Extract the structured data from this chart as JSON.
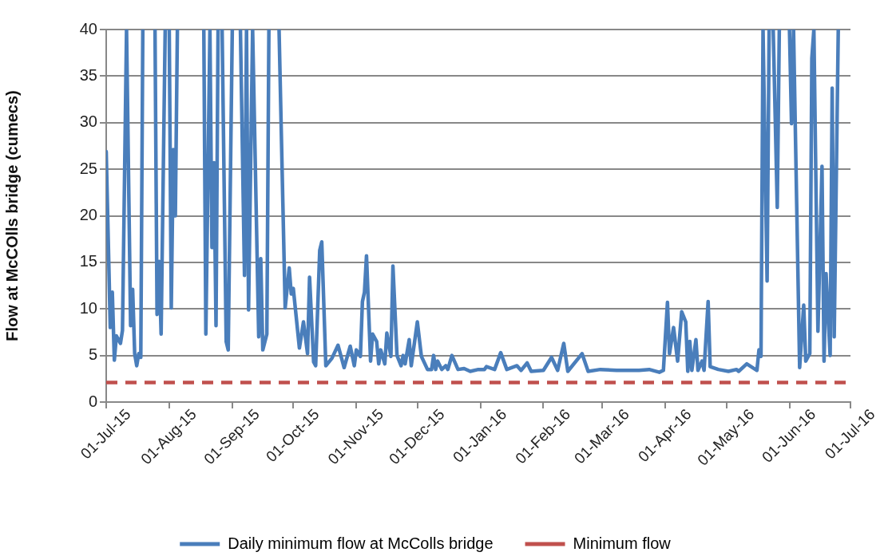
{
  "chart_data": {
    "type": "line",
    "ylabel": "Flow at McCOlls bridge (cumecs)",
    "x": [
      "2015-07-01",
      "2015-07-03",
      "2015-07-04",
      "2015-07-05",
      "2015-07-06",
      "2015-07-08",
      "2015-07-09",
      "2015-07-11",
      "2015-07-13",
      "2015-07-14",
      "2015-07-15",
      "2015-07-16",
      "2015-07-17",
      "2015-07-18",
      "2015-07-19",
      "2015-07-20",
      "2015-07-25",
      "2015-07-26",
      "2015-07-27",
      "2015-07-28",
      "2015-07-30",
      "2015-07-31",
      "2015-08-01",
      "2015-08-02",
      "2015-08-03",
      "2015-08-04",
      "2015-08-05",
      "2015-08-06",
      "2015-08-18",
      "2015-08-19",
      "2015-08-21",
      "2015-08-22",
      "2015-08-23",
      "2015-08-24",
      "2015-08-25",
      "2015-08-26",
      "2015-08-27",
      "2015-08-29",
      "2015-08-30",
      "2015-09-01",
      "2015-09-02",
      "2015-09-05",
      "2015-09-07",
      "2015-09-08",
      "2015-09-09",
      "2015-09-11",
      "2015-09-14",
      "2015-09-15",
      "2015-09-16",
      "2015-09-18",
      "2015-09-19",
      "2015-09-20",
      "2015-09-24",
      "2015-09-27",
      "2015-09-29",
      "2015-09-30",
      "2015-10-01",
      "2015-10-04",
      "2015-10-06",
      "2015-10-08",
      "2015-10-09",
      "2015-10-11",
      "2015-10-12",
      "2015-10-14",
      "2015-10-15",
      "2015-10-17",
      "2015-10-20",
      "2015-10-23",
      "2015-10-26",
      "2015-10-29",
      "2015-10-31",
      "2015-11-01",
      "2015-11-03",
      "2015-11-04",
      "2015-11-05",
      "2015-11-06",
      "2015-11-08",
      "2015-11-09",
      "2015-11-11",
      "2015-11-12",
      "2015-11-13",
      "2015-11-15",
      "2015-11-16",
      "2015-11-18",
      "2015-11-19",
      "2015-11-21",
      "2015-11-23",
      "2015-11-24",
      "2015-11-25",
      "2015-11-27",
      "2015-11-28",
      "2015-12-01",
      "2015-12-03",
      "2015-12-06",
      "2015-12-08",
      "2015-12-09",
      "2015-12-10",
      "2015-12-11",
      "2015-12-13",
      "2015-12-15",
      "2015-12-16",
      "2015-12-18",
      "2015-12-21",
      "2015-12-24",
      "2015-12-27",
      "2015-12-31",
      "2016-01-03",
      "2016-01-04",
      "2016-01-08",
      "2016-01-11",
      "2016-01-14",
      "2016-01-19",
      "2016-01-21",
      "2016-01-24",
      "2016-01-26",
      "2016-02-01",
      "2016-02-05",
      "2016-02-08",
      "2016-02-11",
      "2016-02-13",
      "2016-02-20",
      "2016-02-23",
      "2016-02-29",
      "2016-03-08",
      "2016-03-19",
      "2016-03-24",
      "2016-03-29",
      "2016-03-31",
      "2016-04-02",
      "2016-04-03",
      "2016-04-05",
      "2016-04-07",
      "2016-04-09",
      "2016-04-11",
      "2016-04-12",
      "2016-04-13",
      "2016-04-14",
      "2016-04-16",
      "2016-04-17",
      "2016-04-19",
      "2016-04-20",
      "2016-04-22",
      "2016-04-23",
      "2016-04-27",
      "2016-05-02",
      "2016-05-06",
      "2016-05-07",
      "2016-05-11",
      "2016-05-16",
      "2016-05-17",
      "2016-05-18",
      "2016-05-19",
      "2016-05-21",
      "2016-05-22",
      "2016-05-23",
      "2016-05-24",
      "2016-05-26",
      "2016-05-27",
      "2016-05-28",
      "2016-06-01",
      "2016-06-02",
      "2016-06-03",
      "2016-06-06",
      "2016-06-08",
      "2016-06-09",
      "2016-06-11",
      "2016-06-12",
      "2016-06-13",
      "2016-06-15",
      "2016-06-17",
      "2016-06-18",
      "2016-06-19",
      "2016-06-21",
      "2016-06-22",
      "2016-06-23",
      "2016-06-25"
    ],
    "series": [
      {
        "name": "Daily minimum flow at McColls bridge",
        "color": "#4a7ebb",
        "values": [
          26.9,
          8.0,
          11.8,
          4.5,
          7.1,
          6.3,
          7.7,
          40,
          8.2,
          12.1,
          5.2,
          3.9,
          5.2,
          4.8,
          40,
          null,
          40,
          9.4,
          15.1,
          7.3,
          40,
          null,
          40,
          10.1,
          27.1,
          20.0,
          40,
          null,
          40,
          7.3,
          40,
          16.6,
          25.7,
          8.2,
          40,
          null,
          40,
          6.5,
          5.6,
          40,
          null,
          40,
          13.6,
          40,
          9.9,
          40,
          7.0,
          15.4,
          5.6,
          7.3,
          40,
          null,
          40,
          10.1,
          14.4,
          11.6,
          12.2,
          5.8,
          8.6,
          5.2,
          13.4,
          4.3,
          3.9,
          16.3,
          17.2,
          3.9,
          4.7,
          6.1,
          3.7,
          6.0,
          3.9,
          5.6,
          4.9,
          10.8,
          11.8,
          15.7,
          4.4,
          7.3,
          6.5,
          4.1,
          5.6,
          4.1,
          7.4,
          4.9,
          14.6,
          5.0,
          3.9,
          5.0,
          4.1,
          6.7,
          3.9,
          8.6,
          4.9,
          3.5,
          3.5,
          5.0,
          3.5,
          4.4,
          3.5,
          3.9,
          3.5,
          5.0,
          3.5,
          3.6,
          3.3,
          3.5,
          3.5,
          3.8,
          3.5,
          5.3,
          3.5,
          3.9,
          3.4,
          4.2,
          3.3,
          3.4,
          4.8,
          3.4,
          6.3,
          3.3,
          5.2,
          3.3,
          3.5,
          3.4,
          3.4,
          3.5,
          3.2,
          3.4,
          10.7,
          5.2,
          8.0,
          4.4,
          9.7,
          8.6,
          3.3,
          6.5,
          3.4,
          6.7,
          3.4,
          4.4,
          3.4,
          10.8,
          3.8,
          3.5,
          3.3,
          3.5,
          3.3,
          4.1,
          3.4,
          5.6,
          4.9,
          40,
          13.0,
          40,
          null,
          40,
          20.9,
          40,
          null,
          40,
          29.9,
          40,
          3.7,
          10.4,
          4.4,
          5.2,
          36.9,
          40,
          7.6,
          25.3,
          4.4,
          13.8,
          5.0,
          33.7,
          7.0,
          40
        ]
      }
    ],
    "ref_lines": [
      {
        "axis": "y",
        "value": 2.1,
        "label": "Minimum flow",
        "color": "#c0504d",
        "line_style": "dashed"
      }
    ],
    "xlim": [
      "2015-07-01",
      "2016-07-01"
    ],
    "xticks": [
      {
        "value": "2015-07-01",
        "label": "01-Jul-15"
      },
      {
        "value": "2015-08-01",
        "label": "01-Aug-15"
      },
      {
        "value": "2015-09-01",
        "label": "01-Sep-15"
      },
      {
        "value": "2015-10-01",
        "label": "01-Oct-15"
      },
      {
        "value": "2015-11-01",
        "label": "01-Nov-15"
      },
      {
        "value": "2015-12-01",
        "label": "01-Dec-15"
      },
      {
        "value": "2016-01-01",
        "label": "01-Jan-16"
      },
      {
        "value": "2016-02-01",
        "label": "01-Feb-16"
      },
      {
        "value": "2016-03-01",
        "label": "01-Mar-16"
      },
      {
        "value": "2016-04-01",
        "label": "01-Apr-16"
      },
      {
        "value": "2016-05-01",
        "label": "01-May-16"
      },
      {
        "value": "2016-06-01",
        "label": "01-Jun-16"
      },
      {
        "value": "2016-07-01",
        "label": "01-Jul-16"
      }
    ],
    "ylim": [
      0,
      40
    ],
    "yticks": [
      0,
      5,
      10,
      15,
      20,
      25,
      30,
      35,
      40
    ],
    "grid": "y",
    "legend": "bottom",
    "marker": "none",
    "line_style": "solid"
  }
}
